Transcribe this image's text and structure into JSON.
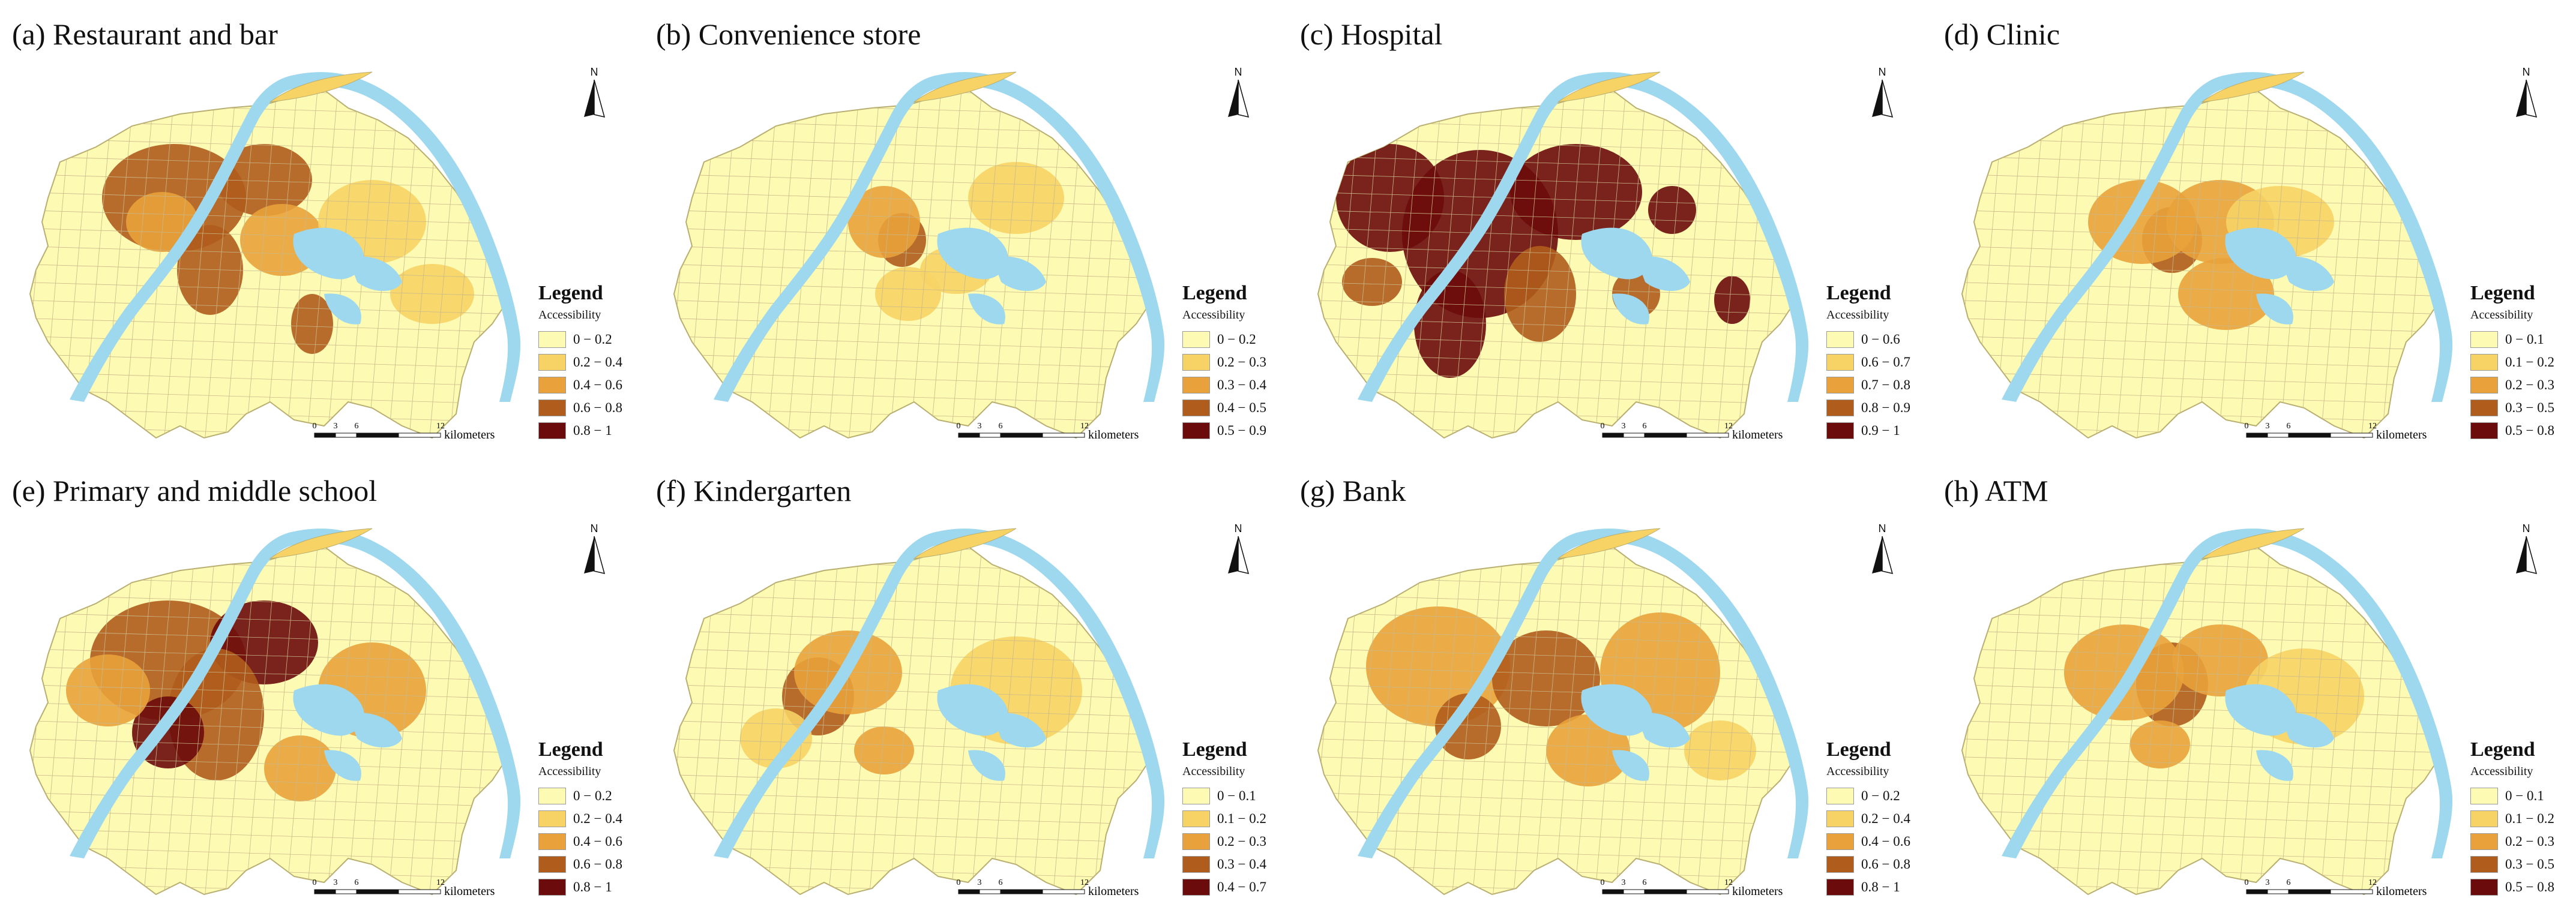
{
  "common": {
    "legend_title": "Legend",
    "legend_subtitle": "Accessibility",
    "scale_ticks": [
      "0",
      "3",
      "6",
      "12"
    ],
    "scale_unit": "kilometers",
    "north_label": "N",
    "water_color": "#9dd8ee",
    "class_colors": [
      "#fdfab3",
      "#f7d365",
      "#e9a23b",
      "#b05c1c",
      "#6b0b0b"
    ]
  },
  "panels": [
    {
      "title": "(a) Restaurant and bar",
      "classes": [
        "0 − 0.2",
        "0.2 − 0.4",
        "0.4 − 0.6",
        "0.6 − 0.8",
        "0.8 − 1"
      ]
    },
    {
      "title": "(b) Convenience store",
      "classes": [
        "0 − 0.2",
        "0.2 − 0.3",
        "0.3 − 0.4",
        "0.4 − 0.5",
        "0.5 − 0.9"
      ]
    },
    {
      "title": "(c) Hospital",
      "classes": [
        "0 − 0.6",
        "0.6 − 0.7",
        "0.7 − 0.8",
        "0.8 − 0.9",
        "0.9 − 1"
      ]
    },
    {
      "title": "(d) Clinic",
      "classes": [
        "0 − 0.1",
        "0.1 − 0.2",
        "0.2 − 0.3",
        "0.3 − 0.5",
        "0.5 − 0.8"
      ]
    },
    {
      "title": "(e) Primary and middle school",
      "classes": [
        "0 − 0.2",
        "0.2 − 0.4",
        "0.4 − 0.6",
        "0.6 − 0.8",
        "0.8 − 1"
      ]
    },
    {
      "title": "(f) Kindergarten",
      "classes": [
        "0 − 0.1",
        "0.1 − 0.2",
        "0.2 − 0.3",
        "0.3 − 0.4",
        "0.4 − 0.7"
      ]
    },
    {
      "title": "(g) Bank",
      "classes": [
        "0 − 0.2",
        "0.2 − 0.4",
        "0.4 − 0.6",
        "0.6 − 0.8",
        "0.8 − 1"
      ]
    },
    {
      "title": "(h) ATM",
      "classes": [
        "0 − 0.1",
        "0.1 − 0.2",
        "0.2 − 0.3",
        "0.3 − 0.5",
        "0.5 − 0.8"
      ]
    }
  ]
}
